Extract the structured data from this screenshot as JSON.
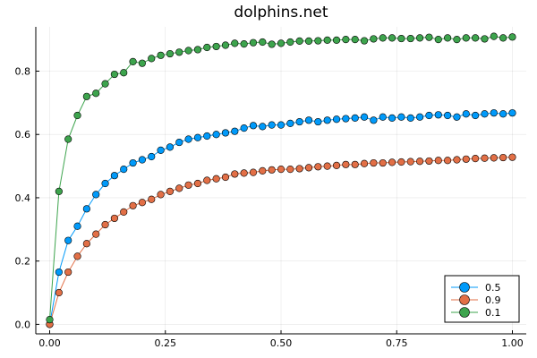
{
  "chart_data": {
    "type": "line",
    "title": "dolphins.net",
    "xlabel": "",
    "ylabel": "",
    "xlim": [
      -0.03,
      1.03
    ],
    "ylim": [
      -0.03,
      0.94
    ],
    "xticks": [
      0.0,
      0.25,
      0.5,
      0.75,
      1.0
    ],
    "xtick_labels": [
      "0.00",
      "0.25",
      "0.50",
      "0.75",
      "1.00"
    ],
    "yticks": [
      0.0,
      0.2,
      0.4,
      0.6,
      0.8
    ],
    "ytick_labels": [
      "0.0",
      "0.2",
      "0.4",
      "0.6",
      "0.8"
    ],
    "grid": true,
    "legend_position": "bottom-right",
    "markers": "circle",
    "x": [
      0.0,
      0.02,
      0.04,
      0.06,
      0.08,
      0.1,
      0.12,
      0.14,
      0.16,
      0.18,
      0.2,
      0.22,
      0.24,
      0.26,
      0.28,
      0.3,
      0.32,
      0.34,
      0.36,
      0.38,
      0.4,
      0.42,
      0.44,
      0.46,
      0.48,
      0.5,
      0.52,
      0.54,
      0.56,
      0.58,
      0.6,
      0.62,
      0.64,
      0.66,
      0.68,
      0.7,
      0.72,
      0.74,
      0.76,
      0.78,
      0.8,
      0.82,
      0.84,
      0.86,
      0.88,
      0.9,
      0.92,
      0.94,
      0.96,
      0.98,
      1.0
    ],
    "series": [
      {
        "name": "0.5",
        "color": "#009AFA",
        "values": [
          0.0,
          0.165,
          0.265,
          0.31,
          0.365,
          0.41,
          0.445,
          0.47,
          0.49,
          0.51,
          0.52,
          0.53,
          0.55,
          0.56,
          0.575,
          0.585,
          0.59,
          0.595,
          0.6,
          0.605,
          0.61,
          0.62,
          0.628,
          0.625,
          0.63,
          0.63,
          0.635,
          0.64,
          0.645,
          0.64,
          0.645,
          0.648,
          0.65,
          0.652,
          0.655,
          0.645,
          0.655,
          0.652,
          0.655,
          0.652,
          0.655,
          0.66,
          0.662,
          0.66,
          0.655,
          0.665,
          0.66,
          0.665,
          0.668,
          0.665,
          0.668
        ]
      },
      {
        "name": "0.9",
        "color": "#E26F46",
        "values": [
          0.0,
          0.1,
          0.165,
          0.215,
          0.255,
          0.285,
          0.315,
          0.335,
          0.355,
          0.375,
          0.385,
          0.395,
          0.41,
          0.42,
          0.43,
          0.44,
          0.445,
          0.455,
          0.46,
          0.465,
          0.475,
          0.478,
          0.48,
          0.485,
          0.488,
          0.49,
          0.49,
          0.492,
          0.495,
          0.498,
          0.5,
          0.502,
          0.505,
          0.505,
          0.508,
          0.51,
          0.51,
          0.512,
          0.513,
          0.514,
          0.515,
          0.516,
          0.518,
          0.518,
          0.52,
          0.522,
          0.524,
          0.525,
          0.526,
          0.527,
          0.528
        ]
      },
      {
        "name": "0.1",
        "color": "#3DA44D",
        "values": [
          0.015,
          0.42,
          0.585,
          0.66,
          0.72,
          0.73,
          0.76,
          0.79,
          0.795,
          0.83,
          0.825,
          0.84,
          0.85,
          0.855,
          0.86,
          0.865,
          0.868,
          0.875,
          0.878,
          0.882,
          0.888,
          0.886,
          0.89,
          0.892,
          0.885,
          0.888,
          0.892,
          0.895,
          0.895,
          0.896,
          0.898,
          0.898,
          0.9,
          0.9,
          0.896,
          0.902,
          0.905,
          0.905,
          0.903,
          0.903,
          0.905,
          0.907,
          0.9,
          0.905,
          0.9,
          0.905,
          0.905,
          0.902,
          0.91,
          0.905,
          0.908
        ]
      }
    ]
  }
}
